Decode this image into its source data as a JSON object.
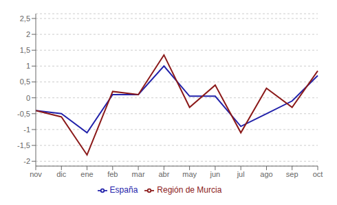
{
  "chart_data": {
    "type": "line",
    "categories": [
      "nov",
      "dic",
      "ene",
      "feb",
      "mar",
      "abr",
      "may",
      "jun",
      "jul",
      "ago",
      "sep",
      "oct"
    ],
    "series": [
      {
        "name": "España",
        "color": "#2222aa",
        "values": [
          -0.4,
          -0.5,
          -1.1,
          0.1,
          0.1,
          1.0,
          0.05,
          0.05,
          -0.9,
          -0.5,
          -0.1,
          0.7
        ]
      },
      {
        "name": "Región de Murcia",
        "color": "#8b1a1a",
        "values": [
          -0.4,
          -0.6,
          -1.8,
          0.2,
          0.1,
          1.35,
          -0.3,
          0.4,
          -1.1,
          0.3,
          -0.3,
          0.85
        ]
      }
    ],
    "ylim": [
      -2.15,
      2.65
    ],
    "yticks": [
      -2,
      {
        "value": -1.5,
        "label": "-1,5"
      },
      -1,
      {
        "value": -0.5,
        "label": "-0,5"
      },
      0,
      {
        "value": 0.5,
        "label": "0,5"
      },
      1,
      {
        "value": 1.5,
        "label": "1,5"
      },
      2,
      {
        "value": 2.5,
        "label": "2,5"
      }
    ],
    "grid": true,
    "legend": "bottom"
  }
}
